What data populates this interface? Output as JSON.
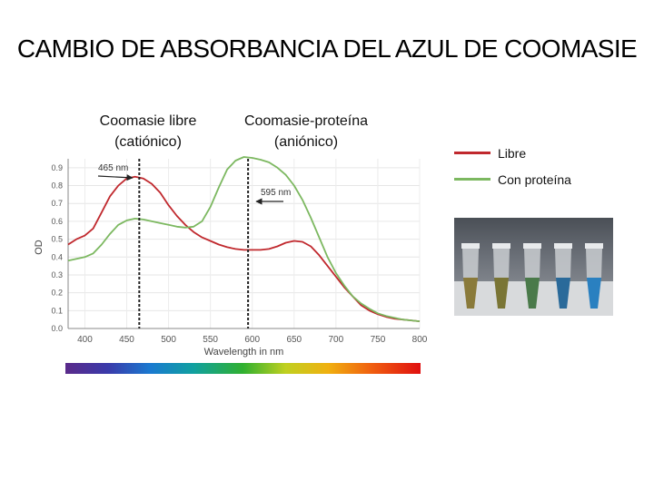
{
  "title": "CAMBIO DE ABSORBANCIA  DEL AZUL DE COOMASIE",
  "annotations": {
    "free_line1": "Coomasie libre",
    "free_line2": "(catiónico)",
    "protein_line1": "Coomasie-proteína",
    "protein_line2": "(aniónico)",
    "peak_free_label": "465 nm",
    "peak_protein_label": "595 nm"
  },
  "legend": {
    "items": [
      {
        "label": "Libre",
        "color": "#c0282d"
      },
      {
        "label": "Con proteína",
        "color": "#7cb860"
      }
    ]
  },
  "photo": {
    "tube_colors": [
      "#8a7a3a",
      "#7a7535",
      "#4a7a4a",
      "#2a6a9a",
      "#2a80c0"
    ]
  },
  "chart_data": {
    "type": "line",
    "xlabel": "Wavelength in nm",
    "ylabel": "OD",
    "xlim": [
      380,
      800
    ],
    "ylim": [
      0.0,
      0.95
    ],
    "xticks": [
      400,
      450,
      500,
      550,
      600,
      650,
      700,
      750,
      800
    ],
    "yticks": [
      0.0,
      0.1,
      0.2,
      0.3,
      0.4,
      0.5,
      0.6,
      0.7,
      0.8,
      0.9
    ],
    "ytick_labels": [
      "0.0",
      "0.1",
      "0.2",
      "0.3",
      "0.4",
      "0.5",
      "0.6",
      "0.7",
      "0.8",
      "0.9"
    ],
    "reference_lines_x": [
      465,
      595
    ],
    "series": [
      {
        "name": "Libre",
        "color": "#c0282d",
        "x": [
          380,
          390,
          400,
          410,
          420,
          430,
          440,
          450,
          460,
          470,
          480,
          490,
          500,
          510,
          520,
          530,
          540,
          550,
          560,
          570,
          580,
          590,
          600,
          610,
          620,
          630,
          640,
          650,
          660,
          670,
          680,
          690,
          700,
          710,
          720,
          730,
          740,
          750,
          760,
          770,
          780,
          790,
          800
        ],
        "y": [
          0.47,
          0.5,
          0.52,
          0.56,
          0.65,
          0.74,
          0.8,
          0.84,
          0.85,
          0.84,
          0.81,
          0.76,
          0.69,
          0.63,
          0.58,
          0.54,
          0.51,
          0.49,
          0.47,
          0.455,
          0.445,
          0.44,
          0.44,
          0.44,
          0.445,
          0.46,
          0.48,
          0.49,
          0.485,
          0.46,
          0.41,
          0.35,
          0.29,
          0.23,
          0.18,
          0.13,
          0.1,
          0.08,
          0.065,
          0.055,
          0.05,
          0.045,
          0.04
        ]
      },
      {
        "name": "Con proteína",
        "color": "#7cb860",
        "x": [
          380,
          390,
          400,
          410,
          420,
          430,
          440,
          450,
          460,
          470,
          480,
          490,
          500,
          510,
          520,
          530,
          540,
          550,
          560,
          570,
          580,
          590,
          600,
          610,
          620,
          630,
          640,
          650,
          660,
          670,
          680,
          690,
          700,
          710,
          720,
          730,
          740,
          750,
          760,
          770,
          780,
          790,
          800
        ],
        "y": [
          0.38,
          0.39,
          0.4,
          0.42,
          0.47,
          0.53,
          0.58,
          0.605,
          0.615,
          0.61,
          0.6,
          0.59,
          0.58,
          0.57,
          0.565,
          0.57,
          0.6,
          0.68,
          0.79,
          0.89,
          0.94,
          0.96,
          0.955,
          0.945,
          0.93,
          0.9,
          0.86,
          0.8,
          0.72,
          0.62,
          0.51,
          0.4,
          0.31,
          0.24,
          0.18,
          0.14,
          0.11,
          0.085,
          0.07,
          0.06,
          0.05,
          0.045,
          0.04
        ]
      }
    ]
  }
}
